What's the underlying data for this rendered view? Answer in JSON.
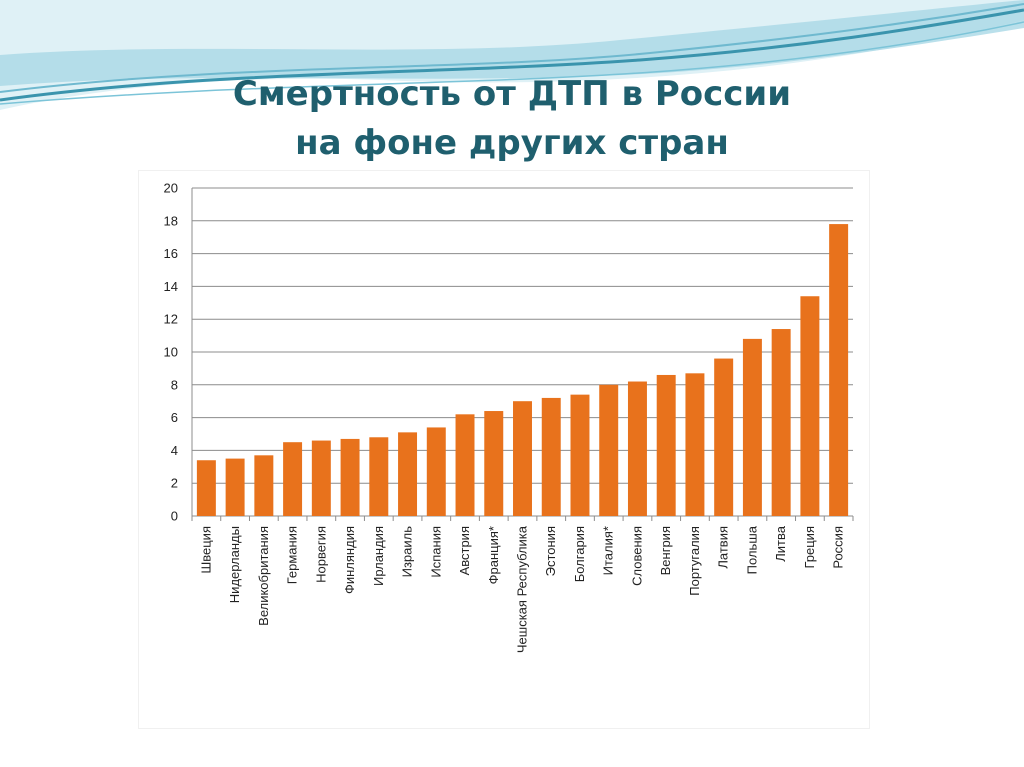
{
  "slide": {
    "title_line1": "Смертность от ДТП в России",
    "title_line2": "на фоне других стран"
  },
  "colors": {
    "bar": "#e8721c",
    "title": "#1f5f6e",
    "wave_dark": "#4aa0b8",
    "wave_light": "#bfe3ee"
  },
  "chart_data": {
    "type": "bar",
    "title": "",
    "xlabel": "",
    "ylabel": "",
    "ylim": [
      0,
      20
    ],
    "yticks": [
      0,
      2,
      4,
      6,
      8,
      10,
      12,
      14,
      16,
      18,
      20
    ],
    "grid": true,
    "categories": [
      "Швеция",
      "Нидерланды",
      "Великобритания",
      "Германия",
      "Норвегия",
      "Финляндия",
      "Ирландия",
      "Израиль",
      "Испания",
      "Австрия",
      "Франция*",
      "Чешская Республика",
      "Эстония",
      "Болгария",
      "Италия*",
      "Словения",
      "Венгрия",
      "Португалия",
      "Латвия",
      "Польша",
      "Литва",
      "Греция",
      "Россия"
    ],
    "values": [
      3.4,
      3.5,
      3.7,
      4.5,
      4.6,
      4.7,
      4.8,
      5.1,
      5.4,
      6.2,
      6.4,
      7.0,
      7.2,
      7.4,
      8.0,
      8.2,
      8.6,
      8.7,
      9.6,
      10.8,
      11.4,
      13.4,
      17.8
    ]
  }
}
